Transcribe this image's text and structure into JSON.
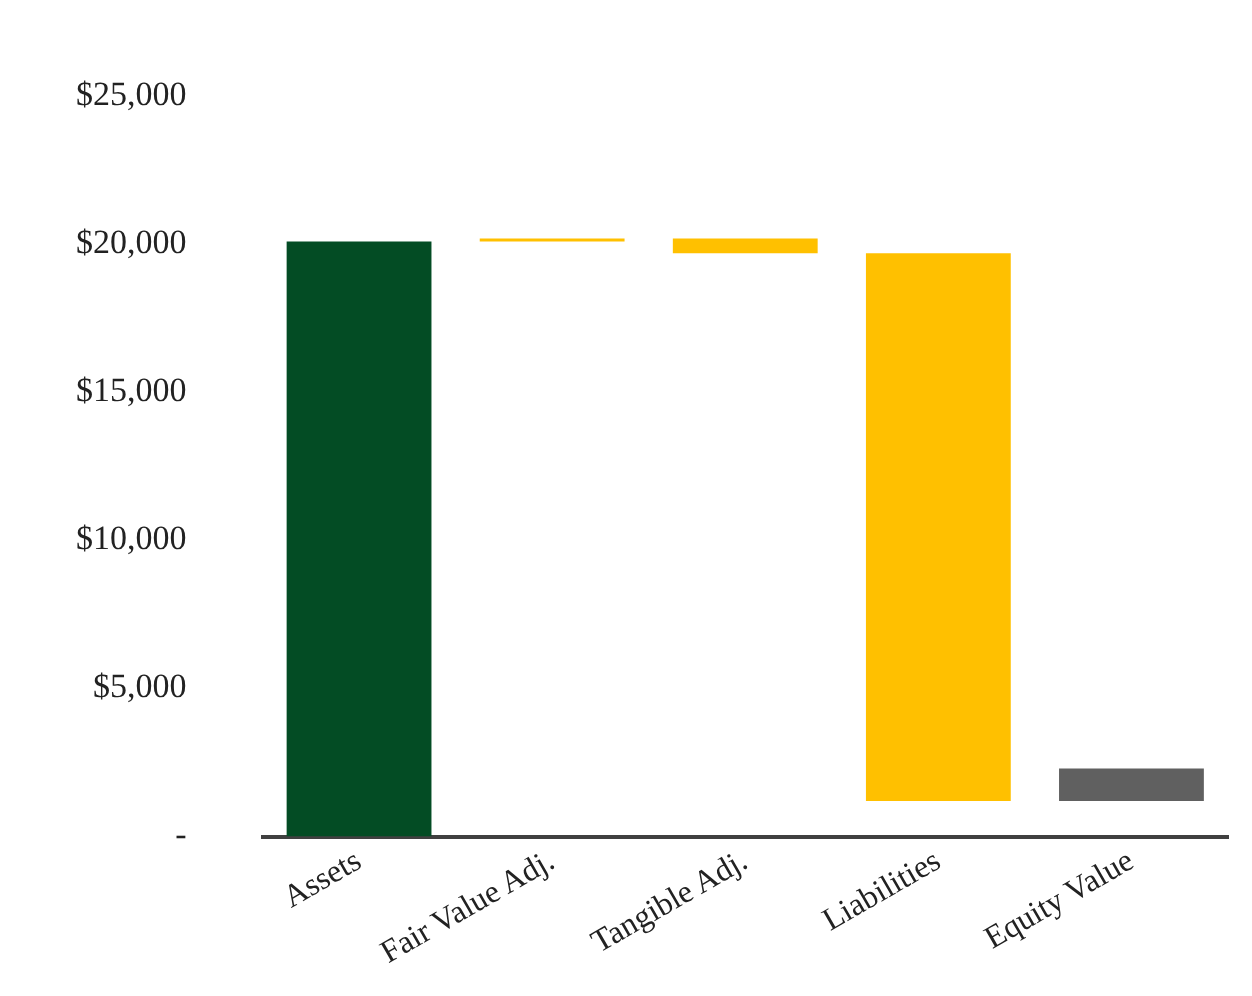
{
  "chart_data": {
    "type": "bar",
    "categories": [
      "Assets",
      "Fair Value Adj.",
      "Tangible Adj.",
      "Liabilities",
      "Equity Value"
    ],
    "values": [
      20100,
      100,
      -500,
      -18500,
      1100
    ],
    "base": [
      0,
      20100,
      20200,
      19700,
      1200
    ],
    "colors": [
      "#034c24",
      "#ffc000",
      "#ffc000",
      "#ffc000",
      "#606060"
    ],
    "ylim": [
      0,
      25000
    ],
    "yticks": [
      {
        "value": 0,
        "label": "-"
      },
      {
        "value": 5000,
        "label": "$5,000"
      },
      {
        "value": 10000,
        "label": "$10,000"
      },
      {
        "value": 15000,
        "label": "$15,000"
      },
      {
        "value": 20000,
        "label": "$20,000"
      },
      {
        "value": 25000,
        "label": "$25,000"
      }
    ],
    "grid": false,
    "legend": false
  }
}
